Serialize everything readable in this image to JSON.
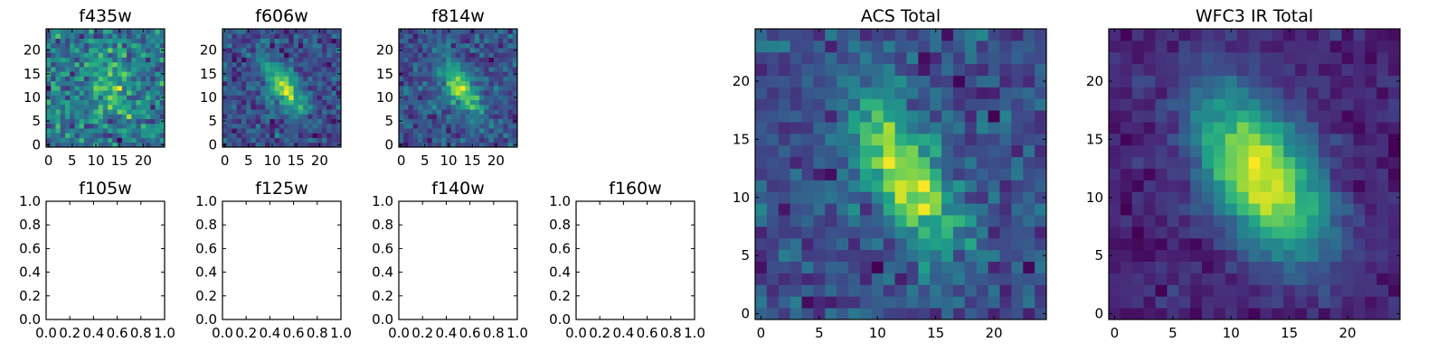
{
  "colors": {
    "colormap": "viridis",
    "frame": "#000000",
    "background": "#ffffff"
  },
  "chart_data": [
    {
      "type": "heatmap",
      "title": "f435w",
      "grid_size": 25,
      "extent": [
        -0.5,
        24.5
      ],
      "xticks": [
        0,
        5,
        10,
        15,
        20
      ],
      "yticks": [
        0,
        5,
        10,
        15,
        20
      ],
      "source_center": [
        13,
        13
      ],
      "source_sigma": [
        5,
        3
      ],
      "source_angle_deg": -55,
      "source_amplitude": 0.25,
      "noise": 0.38,
      "seed": 11,
      "legend": "none",
      "grid": false
    },
    {
      "type": "heatmap",
      "title": "f606w",
      "grid_size": 25,
      "extent": [
        -0.5,
        24.5
      ],
      "xticks": [
        0,
        5,
        10,
        15,
        20
      ],
      "yticks": [
        0,
        5,
        10,
        15,
        20
      ],
      "source_center": [
        12.5,
        12
      ],
      "source_sigma": [
        4.5,
        2
      ],
      "source_angle_deg": -55,
      "source_amplitude": 0.6,
      "noise": 0.3,
      "seed": 23,
      "legend": "none",
      "grid": false
    },
    {
      "type": "heatmap",
      "title": "f814w",
      "grid_size": 25,
      "extent": [
        -0.5,
        24.5
      ],
      "xticks": [
        0,
        5,
        10,
        15,
        20
      ],
      "yticks": [
        0,
        5,
        10,
        15,
        20
      ],
      "source_center": [
        12.5,
        12
      ],
      "source_sigma": [
        4.5,
        2
      ],
      "source_angle_deg": -55,
      "source_amplitude": 0.6,
      "noise": 0.3,
      "seed": 37,
      "legend": "none",
      "grid": false
    },
    {
      "type": "empty",
      "title": "f105w",
      "xlim": [
        0,
        1
      ],
      "ylim": [
        0,
        1
      ],
      "xticks": [
        "0.0",
        "0.2",
        "0.4",
        "0.6",
        "0.8",
        "1.0"
      ],
      "yticks": [
        "0.0",
        "0.2",
        "0.4",
        "0.6",
        "0.8",
        "1.0"
      ]
    },
    {
      "type": "empty",
      "title": "f125w",
      "xlim": [
        0,
        1
      ],
      "ylim": [
        0,
        1
      ],
      "xticks": [
        "0.0",
        "0.2",
        "0.4",
        "0.6",
        "0.8",
        "1.0"
      ],
      "yticks": [
        "0.0",
        "0.2",
        "0.4",
        "0.6",
        "0.8",
        "1.0"
      ]
    },
    {
      "type": "empty",
      "title": "f140w",
      "xlim": [
        0,
        1
      ],
      "ylim": [
        0,
        1
      ],
      "xticks": [
        "0.0",
        "0.2",
        "0.4",
        "0.6",
        "0.8",
        "1.0"
      ],
      "yticks": [
        "0.0",
        "0.2",
        "0.4",
        "0.6",
        "0.8",
        "1.0"
      ]
    },
    {
      "type": "empty",
      "title": "f160w",
      "xlim": [
        0,
        1
      ],
      "ylim": [
        0,
        1
      ],
      "xticks": [
        "0.0",
        "0.2",
        "0.4",
        "0.6",
        "0.8",
        "1.0"
      ],
      "yticks": [
        "0.0",
        "0.2",
        "0.4",
        "0.6",
        "0.8",
        "1.0"
      ]
    },
    {
      "type": "heatmap",
      "title": "ACS Total",
      "grid_size": 25,
      "extent": [
        -0.5,
        24.5
      ],
      "xticks": [
        0,
        5,
        10,
        15,
        20
      ],
      "yticks": [
        0,
        5,
        10,
        15,
        20
      ],
      "source_center": [
        12.5,
        12
      ],
      "source_sigma": [
        5,
        2
      ],
      "source_angle_deg": -60,
      "source_amplitude": 0.55,
      "noise": 0.22,
      "seed": 51,
      "legend": "none",
      "grid": false
    },
    {
      "type": "heatmap",
      "title": "WFC3 IR Total",
      "grid_size": 25,
      "extent": [
        -0.5,
        24.5
      ],
      "xticks": [
        0,
        5,
        10,
        15,
        20
      ],
      "yticks": [
        0,
        5,
        10,
        15,
        20
      ],
      "source_center": [
        12.5,
        12
      ],
      "source_sigma": [
        5.5,
        3
      ],
      "source_angle_deg": -58,
      "source_amplitude": 0.75,
      "noise": 0.12,
      "seed": 67,
      "legend": "none",
      "grid": false
    }
  ]
}
